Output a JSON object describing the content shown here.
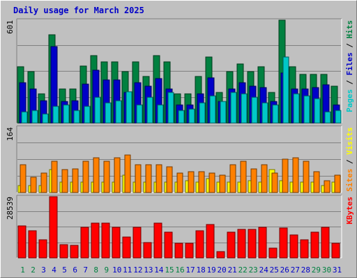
{
  "chart_data": {
    "type": "bar",
    "title": "Daily usage for March 2025",
    "categories": [
      "1",
      "2",
      "3",
      "4",
      "5",
      "6",
      "7",
      "8",
      "9",
      "10",
      "11",
      "12",
      "13",
      "14",
      "15",
      "16",
      "17",
      "18",
      "19",
      "20",
      "21",
      "22",
      "23",
      "24",
      "25",
      "26",
      "27",
      "28",
      "29",
      "30",
      "31"
    ],
    "weekend_days": [
      "1",
      "2",
      "8",
      "9",
      "15",
      "16",
      "22",
      "23",
      "29",
      "30"
    ],
    "grid": true,
    "panels": [
      {
        "name": "hits-files-pages",
        "ymax_label": "601",
        "ylim": [
          0,
          601
        ],
        "right_label": [
          {
            "text": "Pages",
            "color": "#00c8c8"
          },
          {
            "text": " / ",
            "color": "#000000"
          },
          {
            "text": "Files",
            "color": "#0000c8"
          },
          {
            "text": " / ",
            "color": "#000000"
          },
          {
            "text": "Hits",
            "color": "#008040"
          }
        ],
        "series": [
          {
            "name": "Hits",
            "color": "#008040",
            "values": [
              328,
              300,
              171,
              514,
              197,
              197,
              331,
              394,
              356,
              356,
              300,
              356,
              273,
              394,
              356,
              171,
              171,
              273,
              384,
              178,
              300,
              347,
              300,
              328,
              178,
              601,
              328,
              283,
              283,
              283,
              214
            ]
          },
          {
            "name": "Files",
            "color": "#0000c8",
            "values": [
              237,
              197,
              131,
              445,
              124,
              131,
              228,
              309,
              253,
              253,
              178,
              237,
              214,
              260,
              197,
              105,
              105,
              171,
              264,
              124,
              197,
              237,
              214,
              209,
              124,
              291,
              197,
              200,
              209,
              222,
              105
            ]
          },
          {
            "name": "Pages",
            "color": "#00c8c8",
            "values": [
              66,
              72,
              53,
              97,
              105,
              72,
              97,
              150,
              116,
              131,
              184,
              105,
              150,
              105,
              178,
              72,
              82,
              116,
              159,
              124,
              178,
              171,
              150,
              116,
              105,
              384,
              171,
              159,
              144,
              66,
              72
            ]
          }
        ]
      },
      {
        "name": "visits-sites",
        "ymax_label": "164",
        "ylim": [
          0,
          164
        ],
        "right_label": [
          {
            "text": "Sites",
            "color": "#ff8000"
          },
          {
            "text": " / ",
            "color": "#000000"
          },
          {
            "text": "Visits",
            "color": "#ffff00"
          }
        ],
        "series": [
          {
            "name": "Visits",
            "color": "#ffff00",
            "values": [
              18,
              18,
              18,
              57,
              26,
              26,
              26,
              26,
              26,
              26,
              43,
              26,
              26,
              26,
              26,
              26,
              30,
              26,
              35,
              26,
              26,
              26,
              30,
              26,
              57,
              30,
              26,
              26,
              26,
              18,
              26
            ]
          },
          {
            "name": "Sites",
            "color": "#ff8000",
            "values": [
              69,
              39,
              48,
              78,
              57,
              60,
              78,
              87,
              78,
              87,
              95,
              69,
              69,
              69,
              65,
              48,
              52,
              52,
              48,
              43,
              70,
              78,
              60,
              69,
              48,
              84,
              87,
              78,
              52,
              30,
              43
            ]
          }
        ]
      },
      {
        "name": "kbytes",
        "ymax_label": "28539",
        "ylim": [
          0,
          28539
        ],
        "right_label": [
          {
            "text": "KBytes",
            "color": "#ff0000"
          }
        ],
        "series": [
          {
            "name": "KBytes",
            "color": "#ff0000",
            "values": [
              15010,
              12770,
              8420,
              28539,
              6040,
              5810,
              14200,
              16330,
              16330,
              14200,
              9840,
              14200,
              7230,
              16330,
              11920,
              6810,
              6810,
              12770,
              15690,
              2770,
              12120,
              13290,
              13290,
              14200,
              4390,
              13930,
              10650,
              8520,
              12120,
              14200,
              6810
            ]
          }
        ]
      }
    ]
  }
}
